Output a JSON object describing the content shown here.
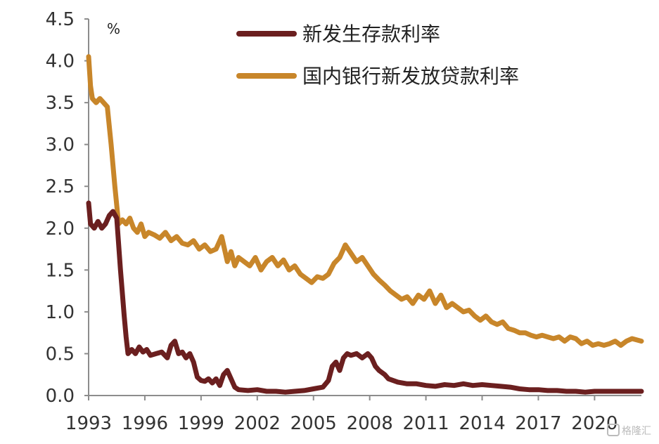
{
  "chart_data": {
    "type": "line",
    "unit_label": "%",
    "xlim": [
      1993,
      2022.5
    ],
    "ylim": [
      0,
      4.5
    ],
    "x_ticks": [
      1993,
      1996,
      1999,
      2002,
      2005,
      2008,
      2011,
      2014,
      2017,
      2020
    ],
    "x_tick_labels": [
      "1993",
      "1996",
      "1999",
      "2002",
      "2005",
      "2008",
      "2011",
      "2014",
      "2017",
      "2020"
    ],
    "y_ticks": [
      0,
      0.5,
      1,
      1.5,
      2,
      2.5,
      3,
      3.5,
      4,
      4.5
    ],
    "y_tick_labels": [
      "0.0",
      "0.5",
      "1.0",
      "1.5",
      "2.0",
      "2.5",
      "3.0",
      "3.5",
      "4.0",
      "4.5"
    ],
    "grid": false,
    "legend_position": "top-center",
    "series": [
      {
        "name": "新发生存款利率",
        "color": "#6b1f1f",
        "x": [
          1993.0,
          1993.1,
          1993.3,
          1993.5,
          1993.7,
          1993.9,
          1994.1,
          1994.3,
          1994.5,
          1994.7,
          1994.9,
          1995.0,
          1995.1,
          1995.3,
          1995.5,
          1995.7,
          1995.9,
          1996.1,
          1996.3,
          1996.6,
          1996.9,
          1997.2,
          1997.4,
          1997.6,
          1997.8,
          1998.0,
          1998.2,
          1998.4,
          1998.6,
          1998.8,
          1999.0,
          1999.2,
          1999.4,
          1999.6,
          1999.8,
          2000.0,
          2000.2,
          2000.4,
          2000.6,
          2000.8,
          2001.0,
          2001.5,
          2002.0,
          2002.5,
          2003.0,
          2003.5,
          2004.0,
          2004.5,
          2005.0,
          2005.5,
          2005.8,
          2006.0,
          2006.2,
          2006.4,
          2006.6,
          2006.8,
          2007.0,
          2007.3,
          2007.6,
          2007.9,
          2008.1,
          2008.3,
          2008.5,
          2008.8,
          2009.0,
          2009.5,
          2010.0,
          2010.5,
          2011.0,
          2011.5,
          2012.0,
          2012.5,
          2013.0,
          2013.5,
          2014.0,
          2014.5,
          2015.0,
          2015.5,
          2016.0,
          2016.5,
          2017.0,
          2017.5,
          2018.0,
          2018.5,
          2019.0,
          2019.5,
          2020.0,
          2020.5,
          2021.0,
          2021.5,
          2022.0,
          2022.5
        ],
        "values": [
          2.3,
          2.05,
          2.0,
          2.08,
          2.0,
          2.05,
          2.15,
          2.2,
          2.12,
          1.5,
          0.95,
          0.7,
          0.5,
          0.55,
          0.5,
          0.58,
          0.52,
          0.55,
          0.48,
          0.5,
          0.52,
          0.45,
          0.6,
          0.65,
          0.5,
          0.52,
          0.45,
          0.5,
          0.4,
          0.22,
          0.18,
          0.17,
          0.2,
          0.15,
          0.2,
          0.12,
          0.25,
          0.3,
          0.2,
          0.1,
          0.07,
          0.06,
          0.07,
          0.05,
          0.05,
          0.04,
          0.05,
          0.06,
          0.08,
          0.1,
          0.18,
          0.35,
          0.4,
          0.3,
          0.45,
          0.5,
          0.48,
          0.5,
          0.45,
          0.5,
          0.45,
          0.35,
          0.3,
          0.25,
          0.2,
          0.16,
          0.14,
          0.14,
          0.12,
          0.11,
          0.13,
          0.12,
          0.14,
          0.12,
          0.13,
          0.12,
          0.11,
          0.1,
          0.08,
          0.07,
          0.07,
          0.06,
          0.06,
          0.05,
          0.05,
          0.04,
          0.05,
          0.05,
          0.05,
          0.05,
          0.05,
          0.05
        ]
      },
      {
        "name": "国内银行新发放贷款利率",
        "color": "#c8862a",
        "x": [
          1993.0,
          1993.1,
          1993.2,
          1993.4,
          1993.6,
          1993.8,
          1994.0,
          1994.2,
          1994.4,
          1994.6,
          1994.8,
          1995.0,
          1995.2,
          1995.4,
          1995.6,
          1995.8,
          1996.0,
          1996.2,
          1996.5,
          1996.8,
          1997.1,
          1997.4,
          1997.7,
          1998.0,
          1998.3,
          1998.6,
          1998.9,
          1999.2,
          1999.5,
          1999.8,
          2000.1,
          2000.4,
          2000.6,
          2000.8,
          2001.0,
          2001.3,
          2001.6,
          2001.9,
          2002.2,
          2002.5,
          2002.8,
          2003.1,
          2003.4,
          2003.7,
          2004.0,
          2004.3,
          2004.6,
          2004.9,
          2005.2,
          2005.5,
          2005.8,
          2006.1,
          2006.4,
          2006.7,
          2007.0,
          2007.3,
          2007.6,
          2007.9,
          2008.2,
          2008.5,
          2008.8,
          2009.1,
          2009.4,
          2009.7,
          2010.0,
          2010.3,
          2010.6,
          2010.9,
          2011.2,
          2011.5,
          2011.8,
          2012.1,
          2012.4,
          2012.7,
          2013.0,
          2013.3,
          2013.6,
          2013.9,
          2014.2,
          2014.5,
          2014.8,
          2015.1,
          2015.4,
          2015.7,
          2016.0,
          2016.3,
          2016.6,
          2016.9,
          2017.2,
          2017.5,
          2017.8,
          2018.1,
          2018.4,
          2018.7,
          2019.0,
          2019.3,
          2019.6,
          2019.9,
          2020.2,
          2020.5,
          2020.8,
          2021.1,
          2021.4,
          2021.7,
          2022.0,
          2022.5
        ],
        "values": [
          4.05,
          3.7,
          3.55,
          3.5,
          3.55,
          3.5,
          3.45,
          3.0,
          2.5,
          2.05,
          2.1,
          2.05,
          2.12,
          2.0,
          1.95,
          2.05,
          1.9,
          1.95,
          1.92,
          1.88,
          1.95,
          1.85,
          1.9,
          1.82,
          1.8,
          1.85,
          1.75,
          1.8,
          1.72,
          1.75,
          1.9,
          1.6,
          1.72,
          1.55,
          1.65,
          1.6,
          1.55,
          1.65,
          1.5,
          1.6,
          1.65,
          1.55,
          1.62,
          1.5,
          1.55,
          1.45,
          1.4,
          1.35,
          1.42,
          1.4,
          1.45,
          1.58,
          1.65,
          1.8,
          1.7,
          1.6,
          1.65,
          1.55,
          1.45,
          1.38,
          1.32,
          1.25,
          1.2,
          1.15,
          1.18,
          1.1,
          1.2,
          1.15,
          1.25,
          1.1,
          1.2,
          1.05,
          1.1,
          1.05,
          1.0,
          1.02,
          0.95,
          0.9,
          0.95,
          0.88,
          0.85,
          0.88,
          0.8,
          0.78,
          0.75,
          0.75,
          0.72,
          0.7,
          0.72,
          0.7,
          0.68,
          0.7,
          0.65,
          0.7,
          0.68,
          0.62,
          0.65,
          0.6,
          0.62,
          0.6,
          0.62,
          0.65,
          0.6,
          0.65,
          0.68,
          0.65
        ]
      }
    ]
  },
  "watermark": "格隆汇"
}
